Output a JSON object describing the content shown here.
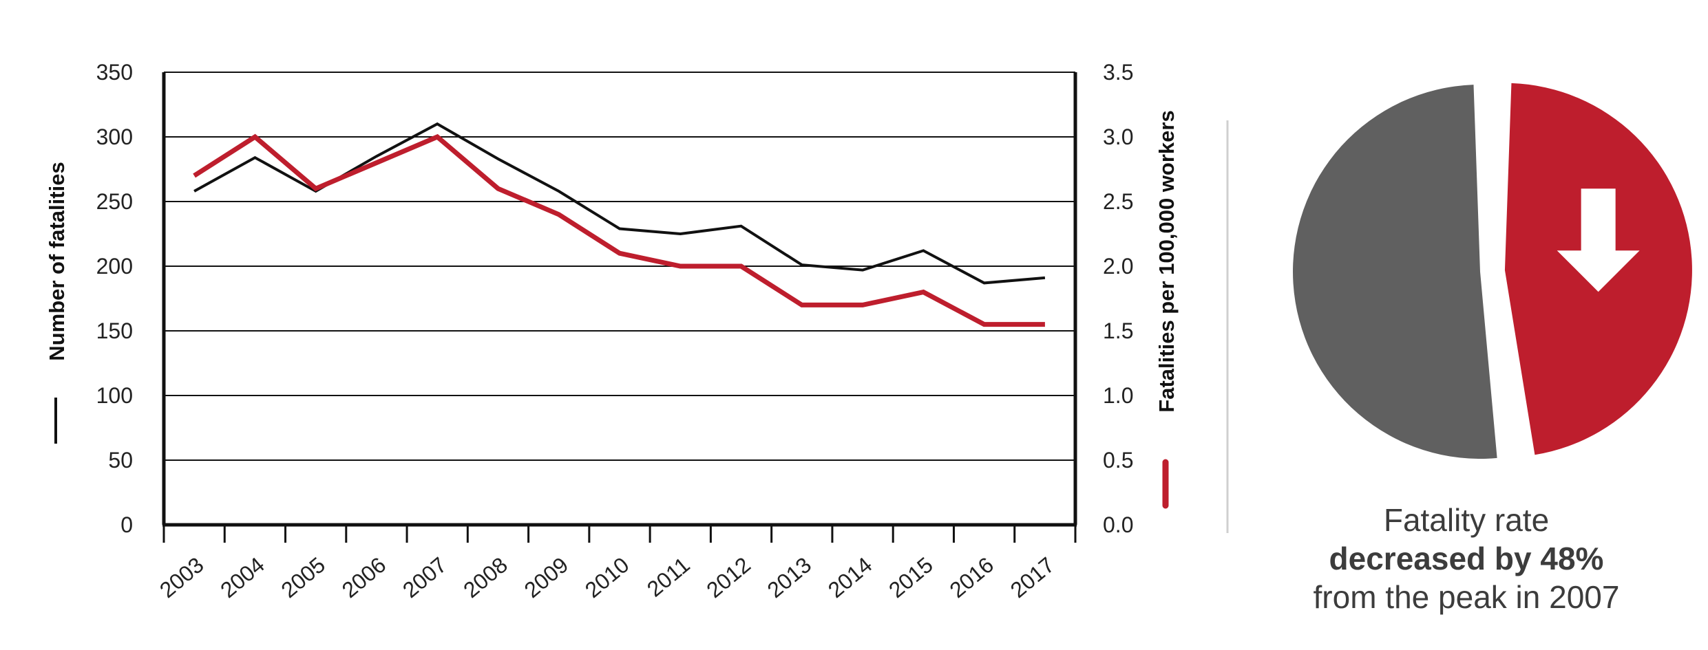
{
  "chart_data": {
    "type": "line",
    "x": [
      "2003",
      "2004",
      "2005",
      "2006",
      "2007",
      "2008",
      "2009",
      "2010",
      "2011",
      "2012",
      "2013",
      "2014",
      "2015",
      "2016",
      "2017"
    ],
    "series": [
      {
        "axis": "left",
        "color": "#111111",
        "values": [
          258,
          284,
          258,
          285,
          310,
          283,
          258,
          229,
          225,
          231,
          201,
          197,
          212,
          187,
          191
        ]
      },
      {
        "axis": "right",
        "color": "#be1e2d",
        "values": [
          2.7,
          3.0,
          2.6,
          2.8,
          3.0,
          2.6,
          2.4,
          2.1,
          2.0,
          2.0,
          1.7,
          1.7,
          1.8,
          1.55,
          1.55
        ]
      }
    ],
    "ylabel": "Number of fatalities",
    "y2label": "Fatalities per 100,000 workers",
    "ylim": [
      0,
      350
    ],
    "y2lim": [
      0,
      3.5
    ],
    "yticks": [
      "0",
      "50",
      "100",
      "150",
      "200",
      "250",
      "300",
      "350"
    ],
    "y2ticks": [
      "0.0",
      "0.5",
      "1.0",
      "1.5",
      "2.0",
      "2.5",
      "3.0",
      "3.5"
    ],
    "grid": true
  },
  "pie": {
    "type": "pie",
    "slices": [
      {
        "value": 52,
        "color": "#606060"
      },
      {
        "value": 48,
        "color": "#be1e2d",
        "icon": "down-arrow-icon"
      }
    ]
  },
  "caption": {
    "line1": "Fatality rate",
    "line2": "decreased by 48%",
    "line3": "from the peak in 2007"
  },
  "colors": {
    "left_series": "#111111",
    "right_series": "#be1e2d",
    "pie_remaining": "#606060",
    "divider": "#cfcfcf"
  }
}
